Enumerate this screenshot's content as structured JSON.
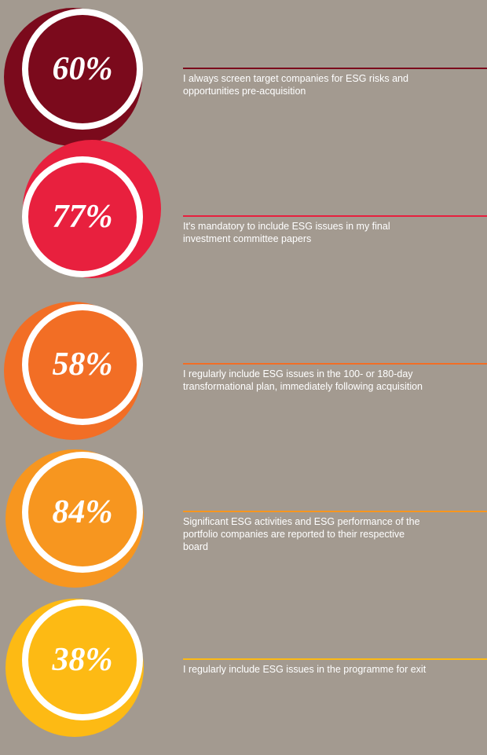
{
  "items": [
    {
      "percent": "60%",
      "color": "#7b0a1c",
      "lines": [
        "I always screen target companies for ESG risks and",
        "opportunities pre-acquisition"
      ]
    },
    {
      "percent": "77%",
      "color": "#e8203e",
      "lines": [
        "It's mandatory to include ESG issues in my final",
        "investment committee papers"
      ]
    },
    {
      "percent": "58%",
      "color": "#f26e25",
      "lines": [
        "I regularly include ESG issues in the 100- or 180-day",
        "transformational plan, immediately following acquisition"
      ]
    },
    {
      "percent": "84%",
      "color": "#f7961f",
      "lines": [
        "Significant ESG activities and ESG performance of the",
        "portfolio companies are reported to their respective",
        "board"
      ]
    },
    {
      "percent": "38%",
      "color": "#fdba14",
      "lines": [
        "I regularly include ESG issues in the programme for exit"
      ]
    }
  ]
}
